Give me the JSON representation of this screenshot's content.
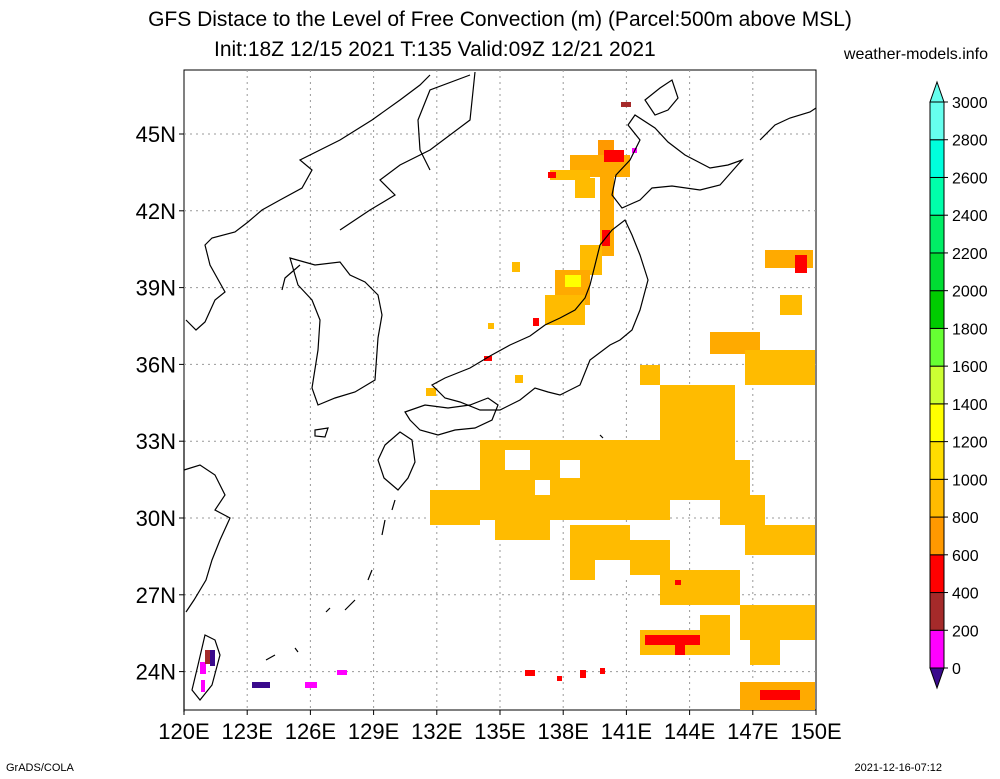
{
  "title": {
    "line1": "GFS Distace to the Level of Free Convection (m) (Parcel:500m above MSL)",
    "line2": "Init:18Z 12/15 2021 T:135 Valid:09Z 12/21 2021"
  },
  "site": "weather-models.info",
  "footer": {
    "left": "GrADS/COLA",
    "right": "2021-12-16-07:12"
  },
  "map": {
    "lon_range": [
      120,
      150
    ],
    "lat_range": [
      22.5,
      47.5
    ],
    "lon_ticks": [
      "120E",
      "123E",
      "126E",
      "129E",
      "132E",
      "135E",
      "138E",
      "141E",
      "144E",
      "147E",
      "150E"
    ],
    "lat_ticks": [
      "24N",
      "27N",
      "30N",
      "33N",
      "36N",
      "39N",
      "42N",
      "45N"
    ]
  },
  "colorbar": {
    "levels": [
      "0",
      "200",
      "400",
      "600",
      "800",
      "1000",
      "1200",
      "1400",
      "1600",
      "1800",
      "2000",
      "2200",
      "2400",
      "2600",
      "2800",
      "3000"
    ],
    "colors": [
      "#3a0a8c",
      "#ff00ff",
      "#a52a2a",
      "#ff0000",
      "#ff9900",
      "#ffbb00",
      "#ffdd00",
      "#ffff00",
      "#ccff33",
      "#66ff33",
      "#00cc00",
      "#00dd33",
      "#00ee66",
      "#00ffaa",
      "#00ffdd",
      "#66ffee"
    ]
  }
}
